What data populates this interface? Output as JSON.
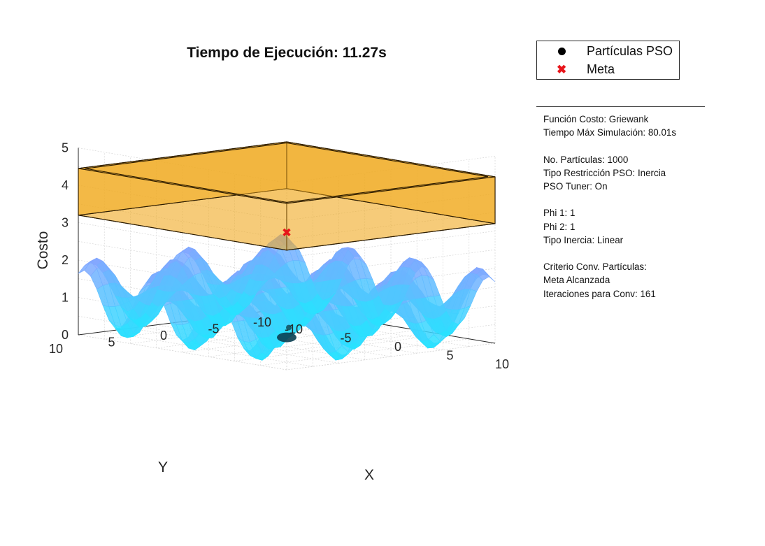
{
  "chart_data": {
    "type": "surface",
    "title": "Tiempo de Ejecución: 11.27s",
    "xlabel": "X",
    "ylabel": "Y",
    "zlabel": "Costo",
    "xlim": [
      -10,
      10
    ],
    "ylim": [
      -10,
      10
    ],
    "zlim": [
      0,
      5
    ],
    "x_ticks": [
      "-10",
      "-5",
      "0",
      "5",
      "10"
    ],
    "y_ticks": [
      "-10",
      "-5",
      "0",
      "5",
      "10"
    ],
    "z_ticks": [
      "0",
      "1",
      "2",
      "3",
      "4",
      "5"
    ],
    "grid": true,
    "surface_function": "griewank",
    "surface_colormap": [
      "#22e6ff",
      "#8aa0ff"
    ],
    "constraint_box": {
      "x": [
        -10,
        10
      ],
      "y": [
        -10,
        10
      ],
      "z": [
        3.2,
        4.45
      ],
      "color": "#f0ab22"
    },
    "goal_point": {
      "x": 0,
      "y": 0,
      "z": 0
    },
    "goal_color": "#e8141a",
    "particle_color": "#000000",
    "legend_placement": "right-top",
    "legend": [
      {
        "label": "Partículas PSO",
        "marker": "circle"
      },
      {
        "label": "Meta",
        "marker": "cross"
      }
    ]
  },
  "info_panel": {
    "groups": [
      [
        "Función Costo: Griewank",
        "Tiempo Máx Simulación: 80.01s"
      ],
      [
        "No. Partículas: 1000",
        "Tipo Restricción PSO: Inercia",
        "PSO Tuner: On"
      ],
      [
        "Phi 1: 1",
        "Phi 2: 1",
        "Tipo Inercia: Linear"
      ],
      [
        "Criterio Conv. Partículas:",
        "Meta Alcanzada",
        "Iteraciones para Conv: 161"
      ]
    ]
  }
}
